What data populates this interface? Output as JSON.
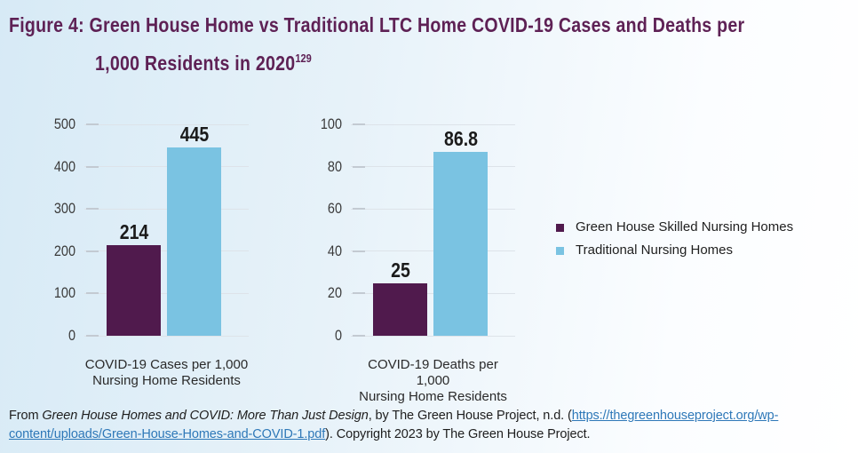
{
  "title": {
    "line1": "Figure 4: Green House Home vs Traditional LTC Home COVID-19 Cases and Deaths per",
    "line2": "1,000 Residents in 2020",
    "superscript": "129"
  },
  "colors": {
    "green_house_bar": "#501a4d",
    "traditional_bar": "#7ac3e2",
    "title_text": "#5e2155",
    "link": "#2e78b8"
  },
  "legend": {
    "items": [
      {
        "label": "Green House Skilled Nursing Homes",
        "color": "#501a4d"
      },
      {
        "label": "Traditional Nursing Homes",
        "color": "#7ac3e2"
      }
    ]
  },
  "chart_data": [
    {
      "type": "bar",
      "categories": [
        "Green House Skilled Nursing Homes",
        "Traditional Nursing Homes"
      ],
      "values": [
        214,
        445
      ],
      "value_labels": [
        "214",
        "445"
      ],
      "xlabel": "COVID-19 Cases per 1,000 Nursing Home Residents",
      "xlabel_lines": [
        "COVID-19 Cases per 1,000",
        "Nursing Home Residents"
      ],
      "ylabel": "",
      "ylim": [
        0,
        500
      ],
      "yticks": [
        0,
        100,
        200,
        300,
        400,
        500
      ],
      "grid": true,
      "legend_position": "right of charts"
    },
    {
      "type": "bar",
      "categories": [
        "Green House Skilled Nursing Homes",
        "Traditional Nursing Homes"
      ],
      "values": [
        25,
        86.8
      ],
      "value_labels": [
        "25",
        "86.8"
      ],
      "xlabel": "COVID-19 Deaths per 1,000 Nursing Home Residents",
      "xlabel_lines": [
        "COVID-19 Deaths per 1,000",
        "Nursing Home Residents"
      ],
      "ylabel": "",
      "ylim": [
        0,
        100
      ],
      "yticks": [
        0,
        20,
        40,
        60,
        80,
        100
      ],
      "grid": true,
      "legend_position": "right of charts"
    }
  ],
  "citation": {
    "prefix": "From ",
    "work_title": "Green House Homes and COVID: More Than Just Design",
    "middle": ", by The Green House Project, n.d. (",
    "link_part1": "https://thegreenhouseproject.org/wp-",
    "link_part2": "content/uploads/Green-House-Homes-and-COVID-1.pdf",
    "suffix": "). Copyright 2023 by The Green House Project."
  }
}
